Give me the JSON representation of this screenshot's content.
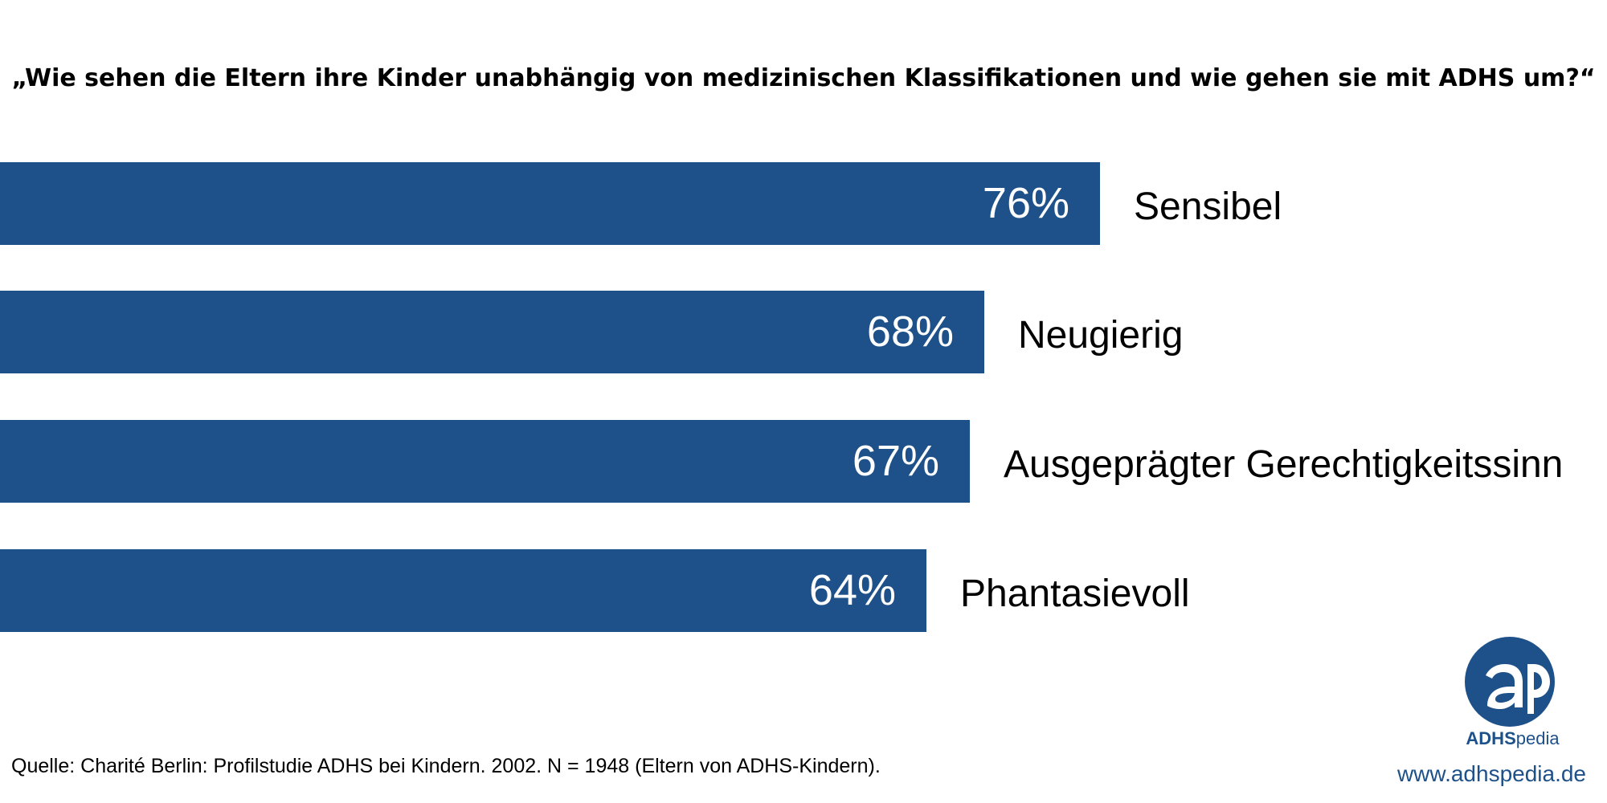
{
  "chart_data": {
    "type": "bar",
    "orientation": "horizontal",
    "title": "„Wie sehen die Eltern ihre Kinder unabhängig von medizinischen Klassifikationen und wie gehen sie mit ADHS um?“",
    "categories": [
      "Sensibel",
      "Neugierig",
      "Ausgeprägter Gerechtigkeitssinn",
      "Phantasievoll"
    ],
    "values": [
      76,
      68,
      67,
      64
    ],
    "value_labels": [
      "76%",
      "68%",
      "67%",
      "64%"
    ],
    "unit": "%",
    "bar_color": "#1e5189",
    "grid": false,
    "legend": "none"
  },
  "source": "Quelle: Charité Berlin: Profilstudie ADHS bei Kindern. 2002. N = 1948 (Eltern von ADHS-Kindern).",
  "logo": {
    "text_bold": "ADHS",
    "text_light": "pedia",
    "icon": "ap-logo-icon",
    "color": "#1e5189"
  },
  "url": "www.adhspedia.de"
}
